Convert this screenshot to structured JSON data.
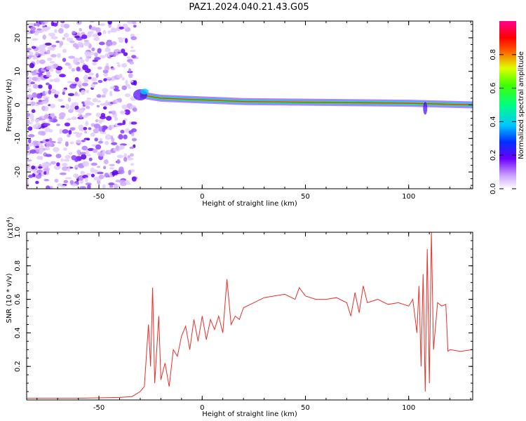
{
  "title": "PAZ1.2024.040.21.43.G05",
  "chart_data": [
    {
      "type": "heatmap",
      "xlabel": "Height of straight line (km)",
      "ylabel": "Frequency (Hz)",
      "xlim": [
        -85,
        131
      ],
      "ylim": [
        -25,
        25
      ],
      "x_ticks": [
        -50,
        0,
        50,
        100
      ],
      "y_ticks": [
        -20,
        -10,
        0,
        10,
        20
      ],
      "colorbar": {
        "label": "Normalized spectral amplitude",
        "range": [
          0,
          1
        ],
        "ticks": [
          "0.0",
          "0.2",
          "0.4",
          "0.6",
          "0.8"
        ],
        "colormap": "white-purple-blue-cyan-green-yellow-red-magenta"
      },
      "description_series": {
        "noise_region_x": [
          -85,
          -35
        ],
        "signal_band": [
          {
            "x": -30,
            "y": 3
          },
          {
            "x": -20,
            "y": 2
          },
          {
            "x": 0,
            "y": 1.5
          },
          {
            "x": 20,
            "y": 1
          },
          {
            "x": 50,
            "y": 0.8
          },
          {
            "x": 100,
            "y": 0.5
          },
          {
            "x": 131,
            "y": 0
          }
        ]
      }
    },
    {
      "type": "line",
      "xlabel": "Height of straight line (km)",
      "ylabel": "SNR (10 * v/v)",
      "yscale_label": "(x10",
      "yscale_exp": "4",
      "yscale_close": ")",
      "xlim": [
        -85,
        131
      ],
      "ylim": [
        0,
        1.0
      ],
      "x_ticks": [
        -50,
        0,
        50,
        100
      ],
      "y_ticks": [
        "0.2",
        "0.4",
        "0.6",
        "0.8",
        "1.0"
      ],
      "y_tick_values": [
        0.2,
        0.4,
        0.6,
        0.8,
        1.0
      ],
      "color": "#e8302a",
      "series": [
        {
          "x": [
            -85,
            -60,
            -40,
            -34,
            -30,
            -28,
            -26,
            -25,
            -24,
            -23,
            -22,
            -21,
            -20,
            -18,
            -16,
            -14,
            -12,
            -10,
            -8,
            -6,
            -4,
            -2,
            0,
            2,
            4,
            6,
            8,
            10,
            12,
            14,
            16,
            18,
            20,
            25,
            30,
            35,
            40,
            45,
            47,
            50,
            55,
            60,
            65,
            70,
            72,
            74,
            76,
            78,
            80,
            85,
            90,
            95,
            100,
            102,
            104,
            105,
            106,
            107,
            108,
            109,
            110,
            111,
            112,
            114,
            116,
            118,
            119,
            120,
            125,
            131
          ],
          "y": [
            0.01,
            0.01,
            0.015,
            0.02,
            0.05,
            0.08,
            0.45,
            0.2,
            0.67,
            0.1,
            0.3,
            0.5,
            0.12,
            0.22,
            0.08,
            0.3,
            0.26,
            0.38,
            0.44,
            0.3,
            0.48,
            0.35,
            0.5,
            0.36,
            0.48,
            0.42,
            0.5,
            0.4,
            0.72,
            0.45,
            0.5,
            0.48,
            0.55,
            0.58,
            0.61,
            0.62,
            0.63,
            0.6,
            0.67,
            0.62,
            0.6,
            0.6,
            0.61,
            0.58,
            0.5,
            0.64,
            0.52,
            0.68,
            0.58,
            0.6,
            0.57,
            0.58,
            0.56,
            0.6,
            0.4,
            0.68,
            0.2,
            0.75,
            0.05,
            0.9,
            0.1,
            1.0,
            0.3,
            0.58,
            0.56,
            0.57,
            0.29,
            0.3,
            0.29,
            0.3
          ]
        }
      ]
    }
  ]
}
